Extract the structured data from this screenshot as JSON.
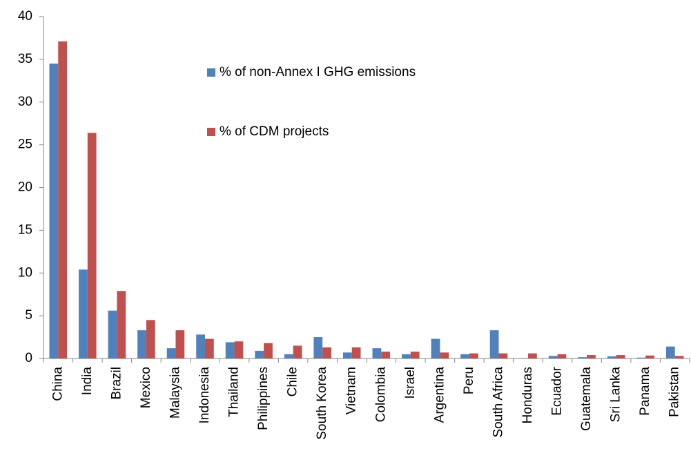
{
  "chart_data": {
    "type": "bar",
    "categories": [
      "China",
      "India",
      "Brazil",
      "Mexico",
      "Malaysia",
      "Indonesia",
      "Thailand",
      "Philippines",
      "Chile",
      "South Korea",
      "Vietnam",
      "Colombia",
      "Israel",
      "Argentina",
      "Peru",
      "South Africa",
      "Honduras",
      "Ecuador",
      "Guatemala",
      "Sri Lanka",
      "Panama",
      "Pakistan"
    ],
    "series": [
      {
        "name": "% of non-Annex I GHG emissions",
        "color": "#4f81bd",
        "values": [
          34.5,
          10.4,
          5.6,
          3.3,
          1.2,
          2.8,
          1.9,
          0.9,
          0.5,
          2.5,
          0.7,
          1.2,
          0.5,
          2.3,
          0.5,
          3.3,
          0.05,
          0.3,
          0.15,
          0.25,
          0.1,
          1.4
        ]
      },
      {
        "name": "% of CDM projects",
        "color": "#c0504d",
        "values": [
          37.1,
          26.4,
          7.9,
          4.5,
          3.3,
          2.3,
          2.0,
          1.8,
          1.5,
          1.3,
          1.3,
          0.8,
          0.8,
          0.7,
          0.6,
          0.6,
          0.6,
          0.5,
          0.4,
          0.4,
          0.35,
          0.3
        ]
      }
    ],
    "ylim": [
      0,
      40
    ],
    "yticks": [
      0,
      5,
      10,
      15,
      20,
      25,
      30,
      35,
      40
    ],
    "grid": false
  }
}
